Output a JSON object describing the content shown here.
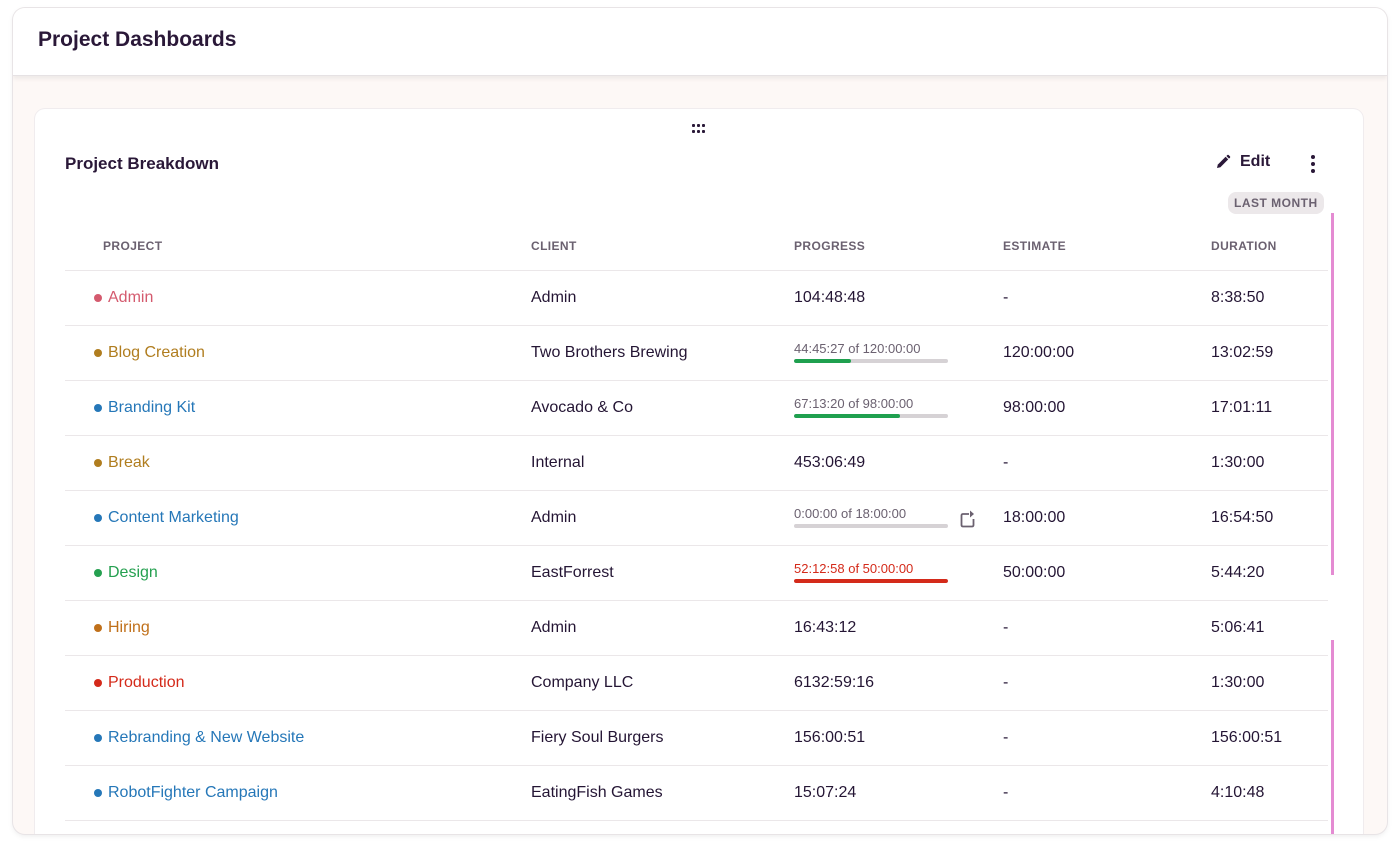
{
  "page": {
    "title": "Project Dashboards"
  },
  "card": {
    "title": "Project Breakdown",
    "edit_label": "Edit",
    "range_badge": "LAST MONTH"
  },
  "table": {
    "headers": {
      "project": "PROJECT",
      "client": "CLIENT",
      "progress": "PROGRESS",
      "estimate": "ESTIMATE",
      "duration": "DURATION"
    },
    "rows": [
      {
        "project": "Admin",
        "color": "#d45a6e",
        "client": "Admin",
        "progress": "104:48:48",
        "estimate": "-",
        "duration": "8:38:50"
      },
      {
        "project": "Blog Creation",
        "color": "#b07d1f",
        "client": "Two Brothers Brewing",
        "progress_text": "44:45:27 of 120:00:00",
        "progress_fraction": 0.37,
        "bar_color": "#1fa04f",
        "estimate": "120:00:00",
        "duration": "13:02:59"
      },
      {
        "project": "Branding Kit",
        "color": "#2577b8",
        "client": "Avocado & Co",
        "progress_text": "67:13:20 of 98:00:00",
        "progress_fraction": 0.69,
        "bar_color": "#1fa04f",
        "estimate": "98:00:00",
        "duration": "17:01:11"
      },
      {
        "project": "Break",
        "color": "#b07d1f",
        "client": "Internal",
        "progress": "453:06:49",
        "estimate": "-",
        "duration": "1:30:00"
      },
      {
        "project": "Content Marketing",
        "color": "#2577b8",
        "client": "Admin",
        "progress_text": "0:00:00 of 18:00:00",
        "progress_fraction": 0,
        "bar_color": "#1fa04f",
        "reset_icon": "reset-icon",
        "estimate": "18:00:00",
        "duration": "16:54:50"
      },
      {
        "project": "Design",
        "color": "#25a050",
        "client": "EastForrest",
        "progress_text": "52:12:58 of 50:00:00",
        "progress_fraction": 1.0,
        "bar_color": "#d42a1a",
        "over": true,
        "estimate": "50:00:00",
        "duration": "5:44:20"
      },
      {
        "project": "Hiring",
        "color": "#c0701a",
        "client": "Admin",
        "progress": "16:43:12",
        "estimate": "-",
        "duration": "5:06:41"
      },
      {
        "project": "Production",
        "color": "#d42a1a",
        "client": "Company LLC",
        "progress": "6132:59:16",
        "estimate": "-",
        "duration": "1:30:00"
      },
      {
        "project": "Rebranding & New Website",
        "color": "#2577b8",
        "client": "Fiery Soul Burgers",
        "progress": "156:00:51",
        "estimate": "-",
        "duration": "156:00:51"
      },
      {
        "project": "RobotFighter Campaign",
        "color": "#2577b8",
        "client": "EatingFish Games",
        "progress": "15:07:24",
        "estimate": "-",
        "duration": "4:10:48"
      }
    ]
  },
  "icons": {
    "drag": "drag-handle-icon",
    "edit": "pencil-icon",
    "more": "more-vertical-icon",
    "reset": "reset-icon"
  }
}
